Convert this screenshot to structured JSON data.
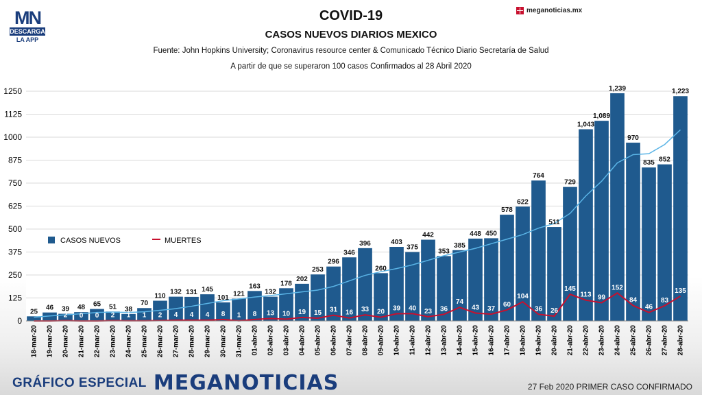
{
  "branding": {
    "app_logo": "MN",
    "app_descarga": "DESCARGA",
    "app_la_app": "LA APP",
    "site": "meganoticias.mx",
    "footer_special": "GRÁFICO ESPECIAL",
    "footer_brand": "MEGANOTICIAS"
  },
  "footer_note": "27 Feb 2020 PRIMER CASO CONFIRMADO",
  "colors": {
    "bar": "#1f5a8e",
    "trend": "#5ab4e6",
    "deaths": "#c8102e",
    "brand_blue": "#1a3d7c",
    "brand_red": "#c8102e"
  },
  "chart_data": {
    "type": "bar",
    "title": "COVID-19",
    "subtitle": "CASOS NUEVOS DIARIOS MEXICO",
    "source": "Fuente: John Hopkins University; Coronavirus resource center & Comunicado Técnico Diario Secretaría de Salud",
    "period_note": "A partir de que se superaron 100 casos Confirmados al 28 Abril 2020",
    "ylim": [
      0,
      1250
    ],
    "yticks": [
      0,
      125,
      250,
      375,
      500,
      625,
      750,
      875,
      1000,
      1125,
      1250
    ],
    "grid": true,
    "legend_position": "middle-left",
    "categories": [
      "18-mar-20",
      "19-mar-20",
      "20-mar-20",
      "21-mar-20",
      "22-mar-20",
      "23-mar-20",
      "24-mar-20",
      "25-mar-20",
      "26-mar-20",
      "27-mar-20",
      "28-mar-20",
      "29-mar-20",
      "30-mar-20",
      "31-mar-20",
      "01-abr-20",
      "02-abr-20",
      "03-abr-20",
      "04-abr-20",
      "05-abr-20",
      "06-abr-20",
      "07-abr-20",
      "08-abr-20",
      "09-abr-20",
      "10-abr-20",
      "11-abr-20",
      "12-abr-20",
      "13-abr-20",
      "14-abr-20",
      "15-abr-20",
      "16-abr-20",
      "17-abr-20",
      "18-abr-20",
      "19-abr-20",
      "20-abr-20",
      "21-abr-20",
      "22-abr-20",
      "23-abr-20",
      "24-abr-20",
      "25-abr-20",
      "26-abr-20",
      "27-abr-20",
      "28-abr-20"
    ],
    "value_labels": [
      "25",
      "46",
      "39",
      "48",
      "65",
      "51",
      "38",
      "70",
      "110",
      "132",
      "131",
      "145",
      "101",
      "121",
      "163",
      "132",
      "178",
      "202",
      "253",
      "296",
      "346",
      "396",
      "260",
      "403",
      "375",
      "442",
      "353",
      "385",
      "448",
      "450",
      "578",
      "622",
      "764",
      "511",
      "729",
      "1,043",
      "1,089",
      "1,239",
      "970",
      "835",
      "852",
      "1,223"
    ],
    "series": [
      {
        "name": "CASOS NUEVOS",
        "type": "bar",
        "values": [
          25,
          46,
          39,
          48,
          65,
          51,
          38,
          70,
          110,
          132,
          131,
          145,
          101,
          121,
          163,
          132,
          178,
          202,
          253,
          296,
          346,
          396,
          260,
          403,
          375,
          442,
          353,
          385,
          448,
          450,
          578,
          622,
          764,
          511,
          729,
          1043,
          1089,
          1239,
          970,
          835,
          852,
          1223
        ]
      },
      {
        "name": "MUERTES",
        "type": "line",
        "values": [
          0,
          0,
          2,
          0,
          0,
          2,
          1,
          1,
          2,
          4,
          4,
          4,
          8,
          1,
          8,
          13,
          10,
          19,
          15,
          31,
          16,
          33,
          20,
          39,
          40,
          23,
          36,
          74,
          43,
          37,
          60,
          104,
          36,
          26,
          145,
          113,
          99,
          152,
          84,
          46,
          83,
          135
        ]
      },
      {
        "type": "line",
        "values": [
          20,
          27,
          33,
          39,
          46,
          48,
          46,
          50,
          58,
          67,
          80,
          95,
          110,
          120,
          130,
          138,
          148,
          158,
          168,
          188,
          218,
          248,
          268,
          285,
          305,
          330,
          355,
          375,
          395,
          420,
          445,
          470,
          505,
          530,
          585,
          680,
          760,
          860,
          905,
          910,
          960,
          1040
        ]
      }
    ]
  }
}
